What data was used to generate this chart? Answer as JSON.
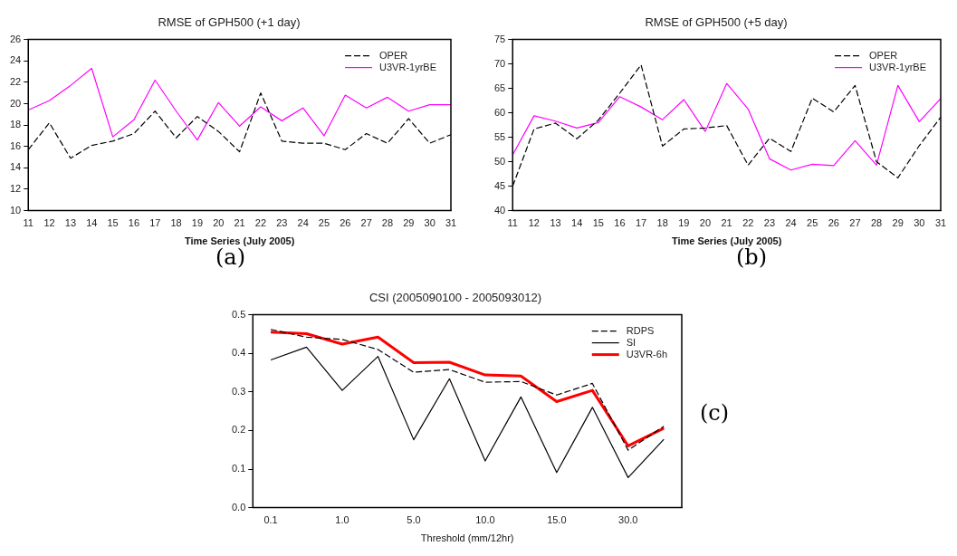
{
  "chart_data": [
    {
      "type": "line",
      "title": "RMSE of GPH500 (+1 day)",
      "xlabel": "Time Series (July 2005)",
      "annotations": [
        "(a)"
      ],
      "categories": [
        "11",
        "12",
        "13",
        "14",
        "15",
        "16",
        "17",
        "18",
        "19",
        "20",
        "21",
        "22",
        "23",
        "24",
        "25",
        "26",
        "27",
        "28",
        "29",
        "30",
        "31"
      ],
      "ylim": [
        10,
        26
      ],
      "yticks": [
        10,
        12,
        14,
        16,
        18,
        20,
        22,
        24,
        26
      ],
      "grid": false,
      "legend": "top right",
      "marker": "none",
      "series": [
        {
          "name": "OPER",
          "color": "#000000",
          "line_style": "dashed",
          "values": [
            15.7,
            18.2,
            14.9,
            16.1,
            16.5,
            17.2,
            19.3,
            16.8,
            18.8,
            17.4,
            15.5,
            21.0,
            16.5,
            16.3,
            16.3,
            15.7,
            17.2,
            16.3,
            18.6,
            16.3,
            17.1
          ]
        },
        {
          "name": "U3VR-1yrBE",
          "color": "#ff00ff",
          "line_style": "solid",
          "values": [
            19.4,
            20.3,
            21.7,
            23.3,
            16.9,
            18.5,
            22.2,
            19.3,
            16.6,
            20.1,
            17.9,
            19.7,
            18.4,
            19.6,
            17.0,
            20.8,
            19.6,
            20.6,
            19.3,
            19.9,
            19.9
          ]
        }
      ]
    },
    {
      "type": "line",
      "title": "RMSE of GPH500 (+5 day)",
      "xlabel": "Time Series (July 2005)",
      "annotations": [
        "(b)"
      ],
      "categories": [
        "11",
        "12",
        "13",
        "14",
        "15",
        "16",
        "17",
        "18",
        "19",
        "20",
        "21",
        "22",
        "23",
        "24",
        "25",
        "26",
        "27",
        "28",
        "29",
        "30",
        "31"
      ],
      "ylim": [
        40,
        75
      ],
      "yticks": [
        40,
        45,
        50,
        55,
        60,
        65,
        70,
        75
      ],
      "grid": false,
      "legend": "top right",
      "marker": "none",
      "series": [
        {
          "name": "OPER",
          "color": "#000000",
          "line_style": "dashed",
          "values": [
            45,
            56.7,
            57.9,
            54.7,
            58.5,
            64,
            69.8,
            53.2,
            56.7,
            56.9,
            57.4,
            49.3,
            54.8,
            52.1,
            63,
            60.2,
            65.6,
            50,
            46.7,
            53.3,
            59.1
          ]
        },
        {
          "name": "U3VR-1yrBE",
          "color": "#ff00ff",
          "line_style": "solid",
          "values": [
            51.4,
            59.4,
            58.3,
            56.9,
            58,
            63.3,
            61.2,
            58.6,
            62.7,
            56.2,
            66,
            60.8,
            50.6,
            48.3,
            49.5,
            49.2,
            54.3,
            49.3,
            65.6,
            58.2,
            62.9
          ]
        }
      ]
    },
    {
      "type": "line",
      "title": "CSI (2005090100 - 2005093012)",
      "xlabel": "Threshold (mm/12hr)",
      "annotations": [
        "(c)"
      ],
      "categories": [
        "0.1",
        null,
        "1.0",
        null,
        "5.0",
        null,
        "10.0",
        null,
        "15.0",
        null,
        "30.0",
        null
      ],
      "ylim": [
        0,
        0.5
      ],
      "yticks": [
        {
          "value": 0,
          "label": "0.0"
        },
        0.1,
        0.2,
        0.3,
        0.4,
        0.5
      ],
      "grid": false,
      "legend": "top right",
      "marker": "none",
      "series": [
        {
          "name": "RDPS",
          "color": "#000000",
          "line_style": "dashed",
          "values": [
            0.462,
            0.442,
            0.436,
            0.41,
            0.351,
            0.358,
            0.325,
            0.327,
            0.292,
            0.322,
            0.149,
            0.211
          ]
        },
        {
          "name": "SI",
          "color": "#000000",
          "line_style": "solid",
          "values": [
            0.383,
            0.416,
            0.304,
            0.392,
            0.176,
            0.334,
            0.121,
            0.287,
            0.091,
            0.26,
            0.078,
            0.177
          ]
        },
        {
          "name": "U3VR-6h",
          "color": "#ff0000",
          "line_style": "solid",
          "values": [
            0.455,
            0.451,
            0.424,
            0.442,
            0.376,
            0.377,
            0.344,
            0.341,
            0.275,
            0.304,
            0.16,
            0.206
          ]
        }
      ]
    }
  ]
}
